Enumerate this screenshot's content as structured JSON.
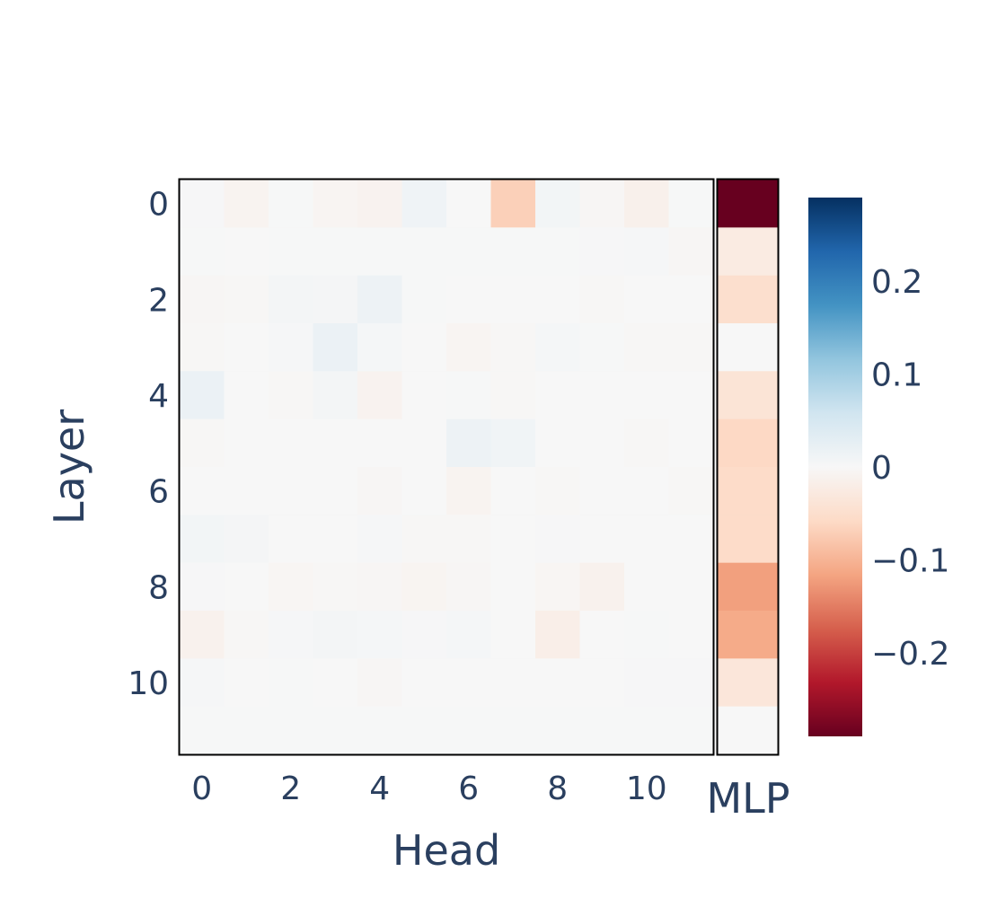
{
  "chart_data": {
    "type": "heatmap",
    "xlabel": "Head",
    "ylabel": "Layer",
    "x_tick_labels": [
      "0",
      "2",
      "4",
      "6",
      "8",
      "10"
    ],
    "x_tick_values": [
      0,
      2,
      4,
      6,
      8,
      10
    ],
    "y_tick_labels": [
      "0",
      "2",
      "4",
      "6",
      "8",
      "10"
    ],
    "y_tick_values": [
      0,
      2,
      4,
      6,
      8,
      10
    ],
    "mlp_label": "MLP",
    "colorscale": "RdBu",
    "zlim": [
      -0.29,
      0.29
    ],
    "colorbar_tick_values": [
      0.2,
      0.1,
      0,
      -0.1,
      -0.2
    ],
    "colorbar_tick_labels": [
      "0.2",
      "0.1",
      "0",
      "−0.1",
      "−0.2"
    ],
    "heads": [
      0,
      1,
      2,
      3,
      4,
      5,
      6,
      7,
      8,
      9,
      10,
      11
    ],
    "layers": [
      0,
      1,
      2,
      3,
      4,
      5,
      6,
      7,
      8,
      9,
      10,
      11
    ],
    "values": [
      [
        0.002,
        -0.008,
        0.001,
        -0.006,
        -0.01,
        0.012,
        0.0,
        -0.07,
        0.008,
        -0.004,
        -0.014,
        0.001
      ],
      [
        0.001,
        0.0,
        0.001,
        0.001,
        0.001,
        0.001,
        0.001,
        0.001,
        0.001,
        0.002,
        0.003,
        -0.004
      ],
      [
        -0.004,
        -0.003,
        0.006,
        0.005,
        0.015,
        0.001,
        0.0,
        0.0,
        0.0,
        -0.002,
        0.0,
        0.0
      ],
      [
        -0.002,
        0.0,
        0.003,
        0.018,
        0.004,
        0.0,
        -0.006,
        -0.003,
        0.004,
        0.001,
        -0.003,
        -0.002
      ],
      [
        0.018,
        0.0,
        -0.002,
        0.006,
        -0.01,
        0.0,
        0.001,
        -0.003,
        0.0,
        0.0,
        0.0,
        0.0
      ],
      [
        -0.003,
        0.0,
        0.0,
        0.0,
        0.0,
        0.0,
        0.015,
        0.01,
        0.0,
        0.0,
        -0.002,
        0.0
      ],
      [
        0.0,
        0.0,
        0.0,
        0.0,
        -0.004,
        0.0,
        -0.009,
        0.0,
        -0.002,
        0.0,
        0.0,
        -0.003
      ],
      [
        0.007,
        0.005,
        0.0,
        0.0,
        0.003,
        -0.002,
        -0.003,
        0.0,
        0.002,
        0.0,
        0.0,
        0.0
      ],
      [
        0.002,
        0.0,
        -0.005,
        -0.002,
        -0.004,
        -0.007,
        -0.004,
        0.0,
        -0.005,
        -0.012,
        0.0,
        0.0
      ],
      [
        -0.012,
        -0.002,
        0.003,
        0.006,
        0.004,
        0.002,
        0.004,
        0.0,
        -0.018,
        0.0,
        0.001,
        0.0
      ],
      [
        0.003,
        0.0,
        0.001,
        0.0,
        -0.004,
        0.0,
        0.0,
        0.0,
        0.0,
        0.0,
        0.002,
        0.002
      ],
      [
        0.001,
        0.001,
        0.001,
        0.001,
        0.001,
        0.001,
        0.001,
        0.001,
        0.001,
        0.001,
        0.001,
        0.001
      ]
    ],
    "mlp_values": [
      -0.29,
      -0.025,
      -0.05,
      0.0,
      -0.04,
      -0.06,
      -0.055,
      -0.055,
      -0.12,
      -0.11,
      -0.035,
      0.0
    ]
  }
}
